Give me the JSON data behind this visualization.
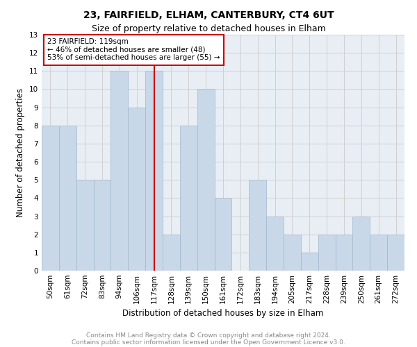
{
  "title": "23, FAIRFIELD, ELHAM, CANTERBURY, CT4 6UT",
  "subtitle": "Size of property relative to detached houses in Elham",
  "xlabel": "Distribution of detached houses by size in Elham",
  "ylabel": "Number of detached properties",
  "categories": [
    "50sqm",
    "61sqm",
    "72sqm",
    "83sqm",
    "94sqm",
    "106sqm",
    "117sqm",
    "128sqm",
    "139sqm",
    "150sqm",
    "161sqm",
    "172sqm",
    "183sqm",
    "194sqm",
    "205sqm",
    "217sqm",
    "228sqm",
    "239sqm",
    "250sqm",
    "261sqm",
    "272sqm"
  ],
  "values": [
    8,
    8,
    5,
    5,
    11,
    9,
    11,
    2,
    8,
    10,
    4,
    0,
    5,
    3,
    2,
    1,
    2,
    2,
    3,
    2,
    2
  ],
  "bar_color": "#c8d8e8",
  "bar_edge_color": "#a0b8cc",
  "property_label": "23 FAIRFIELD: 119sqm",
  "annotation_line1": "← 46% of detached houses are smaller (48)",
  "annotation_line2": "53% of semi-detached houses are larger (55) →",
  "vline_category_index": 6,
  "vline_color": "#cc0000",
  "annotation_box_color": "#cc0000",
  "ylim": [
    0,
    13
  ],
  "yticks": [
    0,
    1,
    2,
    3,
    4,
    5,
    6,
    7,
    8,
    9,
    10,
    11,
    12,
    13
  ],
  "grid_color": "#cccccc",
  "background_color": "#e8eef4",
  "footer_line1": "Contains HM Land Registry data © Crown copyright and database right 2024.",
  "footer_line2": "Contains public sector information licensed under the Open Government Licence v3.0.",
  "title_fontsize": 10,
  "subtitle_fontsize": 9,
  "axis_label_fontsize": 8.5,
  "tick_fontsize": 7.5,
  "footer_fontsize": 6.5
}
